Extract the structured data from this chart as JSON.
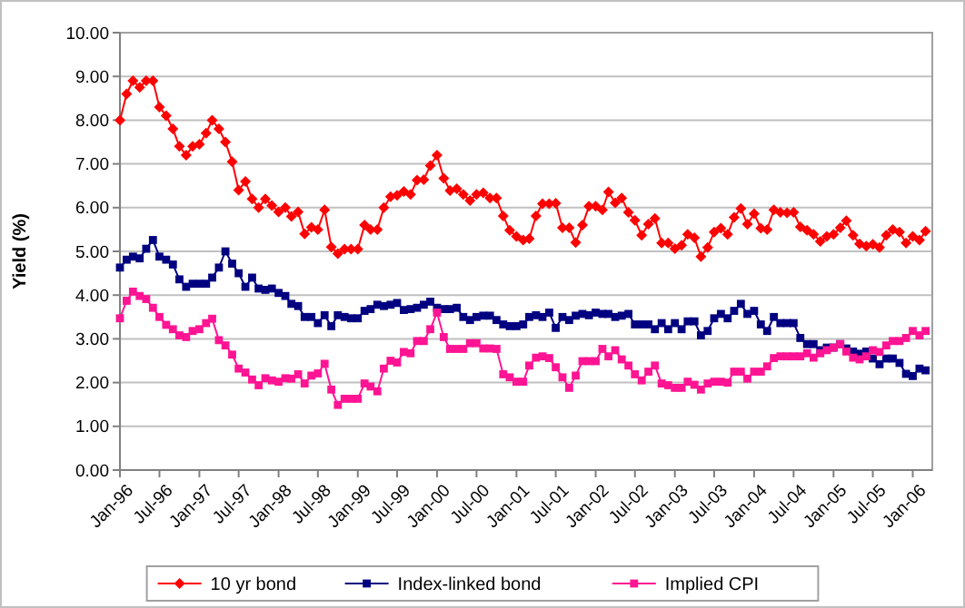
{
  "chart_data": {
    "type": "line",
    "ylabel": "Yield (%)",
    "x": [
      "1996-01",
      "1996-02",
      "1996-03",
      "1996-04",
      "1996-05",
      "1996-06",
      "1996-07",
      "1996-08",
      "1996-09",
      "1996-10",
      "1996-11",
      "1996-12",
      "1997-01",
      "1997-02",
      "1997-03",
      "1997-04",
      "1997-05",
      "1997-06",
      "1997-07",
      "1997-08",
      "1997-09",
      "1997-10",
      "1997-11",
      "1997-12",
      "1998-01",
      "1998-02",
      "1998-03",
      "1998-04",
      "1998-05",
      "1998-06",
      "1998-07",
      "1998-08",
      "1998-09",
      "1998-10",
      "1998-11",
      "1998-12",
      "1999-01",
      "1999-02",
      "1999-03",
      "1999-04",
      "1999-05",
      "1999-06",
      "1999-07",
      "1999-08",
      "1999-09",
      "1999-10",
      "1999-11",
      "1999-12",
      "2000-01",
      "2000-02",
      "2000-03",
      "2000-04",
      "2000-05",
      "2000-06",
      "2000-07",
      "2000-08",
      "2000-09",
      "2000-10",
      "2000-11",
      "2000-12",
      "2001-01",
      "2001-02",
      "2001-03",
      "2001-04",
      "2001-05",
      "2001-06",
      "2001-07",
      "2001-08",
      "2001-09",
      "2001-10",
      "2001-11",
      "2001-12",
      "2002-01",
      "2002-02",
      "2002-03",
      "2002-04",
      "2002-05",
      "2002-06",
      "2002-07",
      "2002-08",
      "2002-09",
      "2002-10",
      "2002-11",
      "2002-12",
      "2003-01",
      "2003-02",
      "2003-03",
      "2003-04",
      "2003-05",
      "2003-06",
      "2003-07",
      "2003-08",
      "2003-09",
      "2003-10",
      "2003-11",
      "2003-12",
      "2004-01",
      "2004-02",
      "2004-03",
      "2004-04",
      "2004-05",
      "2004-06",
      "2004-07",
      "2004-08",
      "2004-09",
      "2004-10",
      "2004-11",
      "2004-12",
      "2005-01",
      "2005-02",
      "2005-03",
      "2005-04",
      "2005-05",
      "2005-06",
      "2005-07",
      "2005-08",
      "2005-09",
      "2005-10",
      "2005-11",
      "2005-12",
      "2006-01",
      "2006-02",
      "2006-03"
    ],
    "xlim": [
      "1996-01",
      "2006-04"
    ],
    "xticks": [
      {
        "value": "1996-01",
        "label": "Jan-96"
      },
      {
        "value": "1996-07",
        "label": "Jul-96"
      },
      {
        "value": "1997-01",
        "label": "Jan-97"
      },
      {
        "value": "1997-07",
        "label": "Jul-97"
      },
      {
        "value": "1998-01",
        "label": "Jan-98"
      },
      {
        "value": "1998-07",
        "label": "Jul-98"
      },
      {
        "value": "1999-01",
        "label": "Jan-99"
      },
      {
        "value": "1999-07",
        "label": "Jul-99"
      },
      {
        "value": "2000-01",
        "label": "Jan-00"
      },
      {
        "value": "2000-07",
        "label": "Jul-00"
      },
      {
        "value": "2001-01",
        "label": "Jan-01"
      },
      {
        "value": "2001-07",
        "label": "Jul-01"
      },
      {
        "value": "2002-01",
        "label": "Jan-02"
      },
      {
        "value": "2002-07",
        "label": "Jul-02"
      },
      {
        "value": "2003-01",
        "label": "Jan-03"
      },
      {
        "value": "2003-07",
        "label": "Jul-03"
      },
      {
        "value": "2004-01",
        "label": "Jan-04"
      },
      {
        "value": "2004-07",
        "label": "Jul-04"
      },
      {
        "value": "2005-01",
        "label": "Jan-05"
      },
      {
        "value": "2005-07",
        "label": "Jul-05"
      },
      {
        "value": "2006-01",
        "label": "Jan-06"
      }
    ],
    "series": [
      {
        "name": "10 yr bond",
        "color": "#ff0000",
        "marker": "diamond",
        "values": [
          8.0,
          8.6,
          8.9,
          8.75,
          8.9,
          8.9,
          8.3,
          8.1,
          7.8,
          7.4,
          7.2,
          7.4,
          7.45,
          7.7,
          8.0,
          7.8,
          7.5,
          7.05,
          6.4,
          6.6,
          6.2,
          6.0,
          6.2,
          6.05,
          5.9,
          6.0,
          5.8,
          5.9,
          5.4,
          5.55,
          5.5,
          5.95,
          5.1,
          4.95,
          5.05,
          5.05,
          5.05,
          5.6,
          5.5,
          5.5,
          6.0,
          6.25,
          6.28,
          6.37,
          6.3,
          6.63,
          6.64,
          6.96,
          7.2,
          6.67,
          6.39,
          6.43,
          6.3,
          6.16,
          6.3,
          6.34,
          6.22,
          6.22,
          5.81,
          5.48,
          5.34,
          5.26,
          5.29,
          5.81,
          6.09,
          6.09,
          6.1,
          5.54,
          5.54,
          5.2,
          5.6,
          6.03,
          6.03,
          5.95,
          6.36,
          6.11,
          6.22,
          5.89,
          5.71,
          5.37,
          5.62,
          5.75,
          5.19,
          5.19,
          5.06,
          5.14,
          5.39,
          5.31,
          4.88,
          5.09,
          5.44,
          5.53,
          5.39,
          5.78,
          5.98,
          5.62,
          5.86,
          5.53,
          5.5,
          5.95,
          5.89,
          5.88,
          5.89,
          5.56,
          5.48,
          5.39,
          5.23,
          5.34,
          5.39,
          5.54,
          5.7,
          5.37,
          5.17,
          5.12,
          5.16,
          5.09,
          5.37,
          5.5,
          5.44,
          5.19,
          5.34,
          5.26,
          5.46
        ]
      },
      {
        "name": "Index-linked bond",
        "color": "#000080",
        "marker": "square",
        "values": [
          4.63,
          4.81,
          4.88,
          4.84,
          5.06,
          5.26,
          4.88,
          4.81,
          4.7,
          4.36,
          4.19,
          4.26,
          4.26,
          4.26,
          4.4,
          4.63,
          5.0,
          4.72,
          4.5,
          4.19,
          4.4,
          4.15,
          4.12,
          4.15,
          4.05,
          3.98,
          3.8,
          3.75,
          3.5,
          3.5,
          3.36,
          3.54,
          3.29,
          3.54,
          3.5,
          3.47,
          3.47,
          3.64,
          3.68,
          3.78,
          3.75,
          3.78,
          3.82,
          3.66,
          3.68,
          3.71,
          3.78,
          3.85,
          3.71,
          3.68,
          3.68,
          3.71,
          3.5,
          3.43,
          3.5,
          3.53,
          3.53,
          3.43,
          3.33,
          3.29,
          3.29,
          3.33,
          3.5,
          3.54,
          3.5,
          3.6,
          3.25,
          3.5,
          3.43,
          3.53,
          3.57,
          3.54,
          3.6,
          3.57,
          3.57,
          3.5,
          3.53,
          3.57,
          3.33,
          3.33,
          3.33,
          3.22,
          3.36,
          3.22,
          3.36,
          3.22,
          3.4,
          3.4,
          3.08,
          3.18,
          3.47,
          3.57,
          3.47,
          3.64,
          3.8,
          3.57,
          3.64,
          3.33,
          3.18,
          3.5,
          3.36,
          3.36,
          3.36,
          3.02,
          2.88,
          2.88,
          2.74,
          2.8,
          2.8,
          2.88,
          2.78,
          2.71,
          2.66,
          2.71,
          2.55,
          2.42,
          2.55,
          2.55,
          2.45,
          2.2,
          2.15,
          2.32,
          2.28
        ]
      },
      {
        "name": "Implied CPI",
        "color": "#ff1493",
        "marker": "square",
        "values": [
          3.47,
          3.87,
          4.08,
          3.98,
          3.91,
          3.71,
          3.5,
          3.32,
          3.22,
          3.08,
          3.04,
          3.18,
          3.22,
          3.36,
          3.46,
          2.97,
          2.85,
          2.64,
          2.32,
          2.23,
          2.07,
          1.94,
          2.1,
          2.05,
          2.02,
          2.1,
          2.09,
          2.19,
          1.98,
          2.16,
          2.21,
          2.43,
          1.84,
          1.49,
          1.63,
          1.63,
          1.63,
          1.98,
          1.91,
          1.8,
          2.32,
          2.5,
          2.46,
          2.7,
          2.67,
          2.95,
          2.95,
          3.22,
          3.6,
          3.04,
          2.77,
          2.77,
          2.77,
          2.9,
          2.9,
          2.78,
          2.78,
          2.77,
          2.19,
          2.12,
          2.02,
          2.02,
          2.39,
          2.57,
          2.6,
          2.56,
          2.35,
          2.12,
          1.88,
          2.16,
          2.49,
          2.49,
          2.49,
          2.77,
          2.6,
          2.74,
          2.53,
          2.39,
          2.19,
          2.05,
          2.25,
          2.39,
          1.98,
          1.94,
          1.88,
          1.88,
          2.02,
          1.95,
          1.84,
          1.98,
          2.02,
          2.02,
          2.0,
          2.25,
          2.25,
          2.09,
          2.25,
          2.25,
          2.37,
          2.56,
          2.6,
          2.6,
          2.6,
          2.6,
          2.67,
          2.57,
          2.67,
          2.74,
          2.8,
          2.88,
          2.71,
          2.57,
          2.53,
          2.6,
          2.74,
          2.7,
          2.85,
          2.95,
          2.95,
          3.02,
          3.18,
          3.08,
          3.18
        ]
      }
    ],
    "ylim": [
      0,
      10
    ],
    "yticks": [
      {
        "value": 0,
        "label": "0.00"
      },
      {
        "value": 1,
        "label": "1.00"
      },
      {
        "value": 2,
        "label": "2.00"
      },
      {
        "value": 3,
        "label": "3.00"
      },
      {
        "value": 4,
        "label": "4.00"
      },
      {
        "value": 5,
        "label": "5.00"
      },
      {
        "value": 6,
        "label": "6.00"
      },
      {
        "value": 7,
        "label": "7.00"
      },
      {
        "value": 8,
        "label": "8.00"
      },
      {
        "value": 9,
        "label": "9.00"
      },
      {
        "value": 10,
        "label": "10.00"
      }
    ],
    "grid": "y",
    "legend": "bottom",
    "line_style": "solid"
  }
}
